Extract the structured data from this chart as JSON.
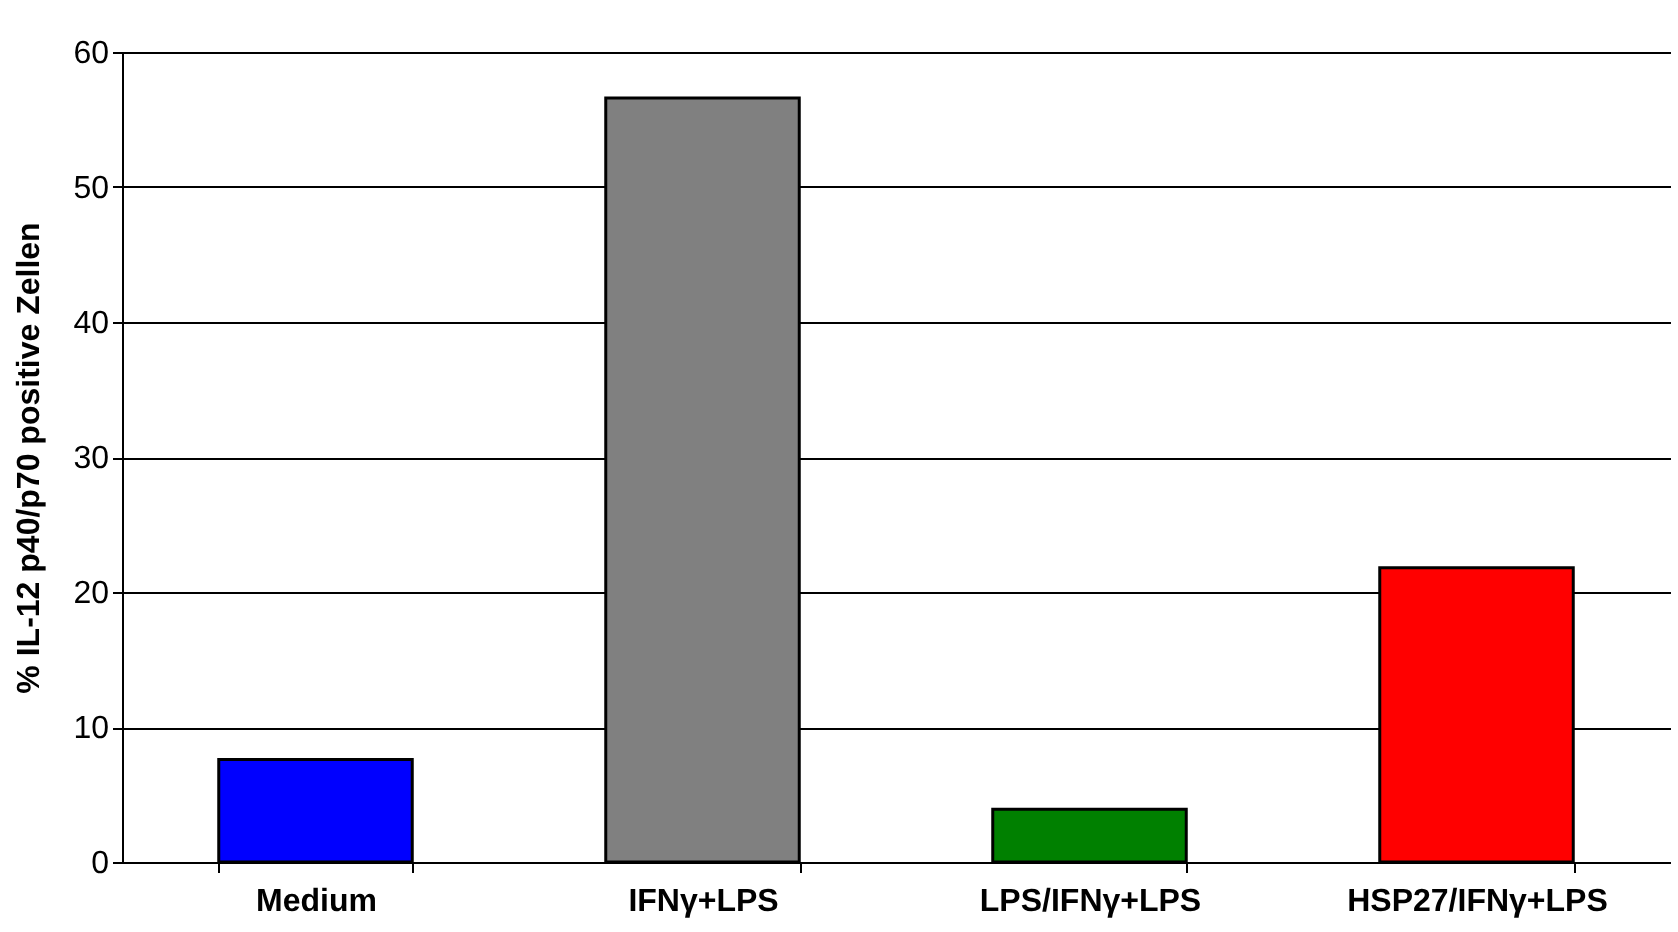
{
  "chart_data": {
    "type": "bar",
    "ylabel": "% IL-12 p40/p70 positive Zellen",
    "categories": [
      "Medium",
      "IFNγ+LPS",
      "LPS/IFNγ+LPS",
      "HSP27/IFNγ+LPS"
    ],
    "values": [
      7.6,
      56.6,
      3.9,
      21.8
    ],
    "colors": [
      "#0000ff",
      "#808080",
      "#008000",
      "#ff0000"
    ],
    "ylim": [
      0,
      60
    ],
    "yticks": [
      0,
      10,
      20,
      30,
      40,
      50,
      60
    ],
    "grid": "y"
  }
}
